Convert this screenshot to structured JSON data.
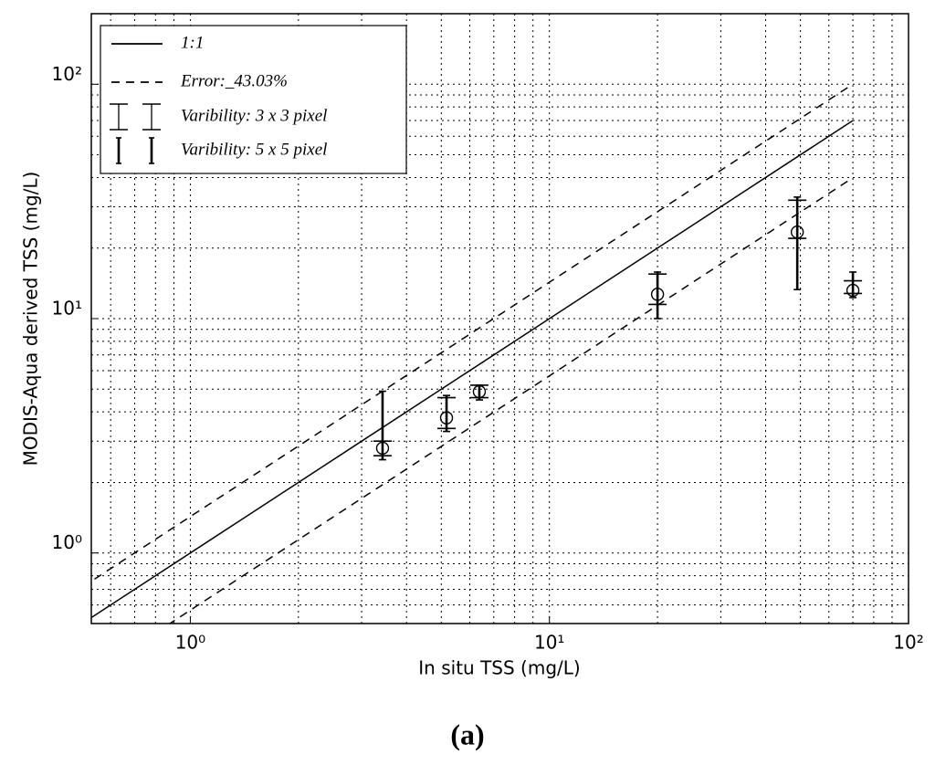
{
  "chart_data": {
    "type": "scatter",
    "xlabel": "In situ TSS (mg/L)",
    "ylabel": "MODIS-Aqua derived TSS (mg/L)",
    "caption": "(a)",
    "log_x": true,
    "log_y": true,
    "grid": true,
    "legend": "upper left",
    "xlim": [
      0.53,
      100
    ],
    "ylim": [
      0.5,
      200
    ],
    "xticks": [
      {
        "value": 1,
        "label": "10⁰"
      },
      {
        "value": 10,
        "label": "10¹"
      },
      {
        "value": 100,
        "label": "10²"
      }
    ],
    "yticks": [
      {
        "value": 1,
        "label": "10⁰"
      },
      {
        "value": 10,
        "label": "10¹"
      },
      {
        "value": 100,
        "label": "10²"
      }
    ],
    "x_minor_ticks": [
      0.6,
      0.7,
      0.8,
      0.9,
      2,
      3,
      4,
      5,
      6,
      7,
      8,
      9,
      20,
      30,
      40,
      50,
      60,
      70,
      80,
      90
    ],
    "y_minor_ticks": [
      0.6,
      0.7,
      0.8,
      0.9,
      2,
      3,
      4,
      5,
      6,
      7,
      8,
      9,
      20,
      30,
      40,
      50,
      60,
      70,
      80,
      90,
      200
    ],
    "series": [
      {
        "name": "1:1",
        "kind": "line",
        "dash": "solid",
        "color": "#000000",
        "x": [
          0.5,
          70
        ],
        "values": [
          0.5,
          70
        ]
      },
      {
        "name": "Error:_43.03%",
        "kind": "line",
        "dash": "dashed",
        "color": "#000000",
        "x": [
          0.5,
          70
        ],
        "values": [
          0.715,
          100.1
        ],
        "values_lower": [
          0.285,
          39.9
        ]
      },
      {
        "name": "Varibility: 3 x 3 pixel",
        "kind": "errorbar",
        "caps": "wide",
        "color": "#000000",
        "low": [
          2.6,
          3.4,
          4.6,
          11.5,
          22,
          12.8
        ],
        "high": [
          3.0,
          4.6,
          5.2,
          15.5,
          32,
          14.5
        ]
      },
      {
        "name": "Varibility: 5 x 5 pixel",
        "kind": "errorbar",
        "caps": "narrow",
        "color": "#000000",
        "low": [
          2.5,
          3.3,
          4.5,
          10.0,
          13.3,
          12.3
        ],
        "high": [
          4.9,
          4.7,
          5.2,
          15.8,
          33,
          15.8
        ]
      }
    ],
    "points": {
      "x": [
        3.43,
        5.17,
        6.38,
        20.0,
        49,
        70
      ],
      "values": [
        2.8,
        3.77,
        4.88,
        12.7,
        23.4,
        13.2
      ],
      "color": "#000000"
    }
  }
}
